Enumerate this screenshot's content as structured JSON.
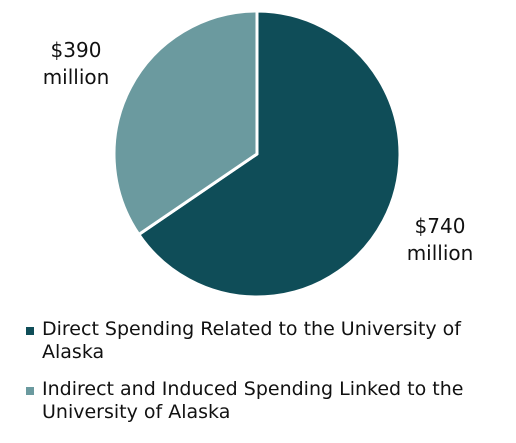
{
  "chart_data": {
    "type": "pie",
    "slices": [
      {
        "name": "Direct Spending Related to the University of Alaska",
        "value": 740,
        "label": "$740 million",
        "label_lines": [
          "$740",
          "million"
        ],
        "color": "#0f4d58"
      },
      {
        "name": "Indirect and Induced Spending Linked to the University of Alaska",
        "value": 390,
        "label": "$390 million",
        "label_lines": [
          "$390",
          "million"
        ],
        "color": "#6b9a9f"
      }
    ],
    "units": "$ million",
    "legend_position": "bottom",
    "start_angle_deg": 0,
    "direction": "clockwise"
  }
}
